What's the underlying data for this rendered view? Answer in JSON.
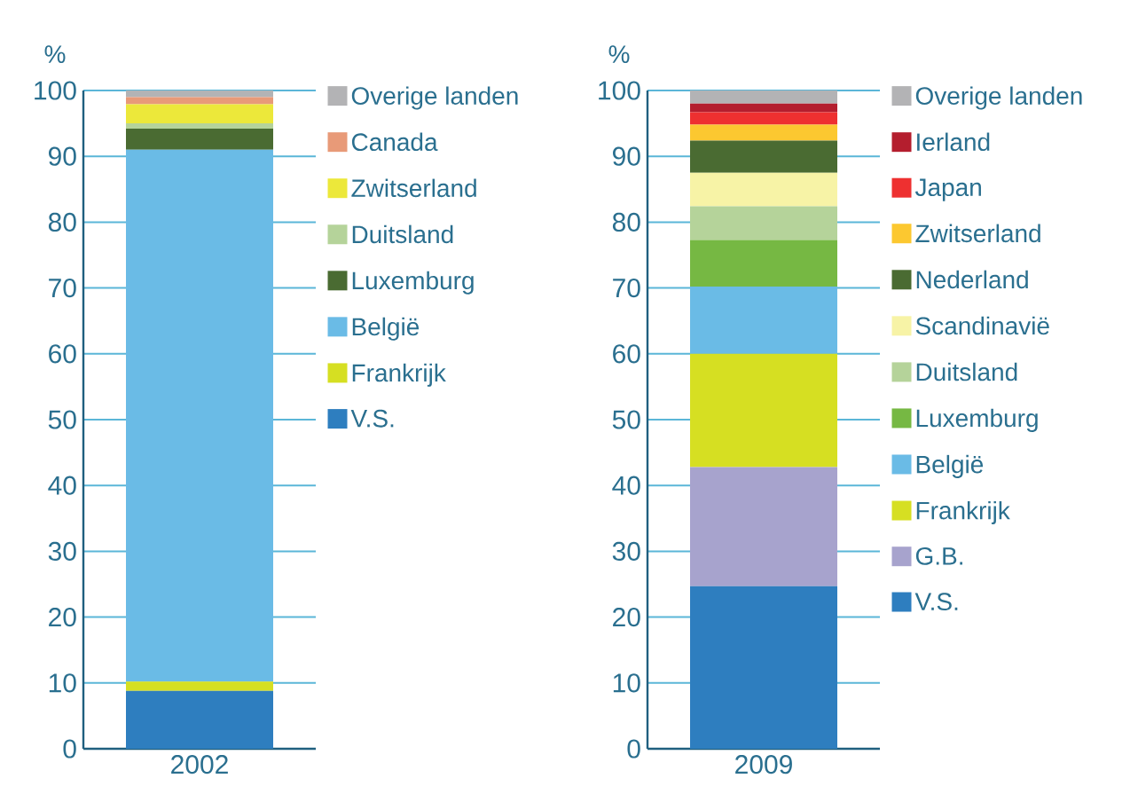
{
  "chart_data": [
    {
      "type": "bar",
      "stacked": true,
      "categories": [
        "2002"
      ],
      "ylabel": "%",
      "ylim": [
        0,
        100
      ],
      "yticks": [
        0,
        10,
        20,
        30,
        40,
        50,
        60,
        70,
        80,
        90,
        100
      ],
      "grid": "y",
      "legend": "right",
      "series": [
        {
          "name": "V.S.",
          "color": "#2e7ebf",
          "values": [
            8.8
          ]
        },
        {
          "name": "Frankrijk",
          "color": "#d6df22",
          "values": [
            1.4
          ]
        },
        {
          "name": "België",
          "color": "#6abbe6",
          "values": [
            80.8
          ]
        },
        {
          "name": "Luxemburg",
          "color": "#4a6b32",
          "values": [
            3.2
          ]
        },
        {
          "name": "Duitsland",
          "color": "#b5d39a",
          "values": [
            0.8
          ]
        },
        {
          "name": "Zwitserland",
          "color": "#ece83a",
          "values": [
            2.9
          ]
        },
        {
          "name": "Canada",
          "color": "#e89a78",
          "values": [
            1.1
          ]
        },
        {
          "name": "Overige landen",
          "color": "#b3b3b5",
          "values": [
            1.0
          ]
        }
      ]
    },
    {
      "type": "bar",
      "stacked": true,
      "categories": [
        "2009"
      ],
      "ylabel": "%",
      "ylim": [
        0,
        100
      ],
      "yticks": [
        0,
        10,
        20,
        30,
        40,
        50,
        60,
        70,
        80,
        90,
        100
      ],
      "grid": "y",
      "legend": "right",
      "series": [
        {
          "name": "V.S.",
          "color": "#2e7ebf",
          "values": [
            24.7
          ]
        },
        {
          "name": "G.B.",
          "color": "#a7a3cd",
          "values": [
            18.1
          ]
        },
        {
          "name": "Frankrijk",
          "color": "#d6df22",
          "values": [
            17.2
          ]
        },
        {
          "name": "België",
          "color": "#6abbe6",
          "values": [
            10.2
          ]
        },
        {
          "name": "Luxemburg",
          "color": "#76b843",
          "values": [
            7.1
          ]
        },
        {
          "name": "Duitsland",
          "color": "#b5d39a",
          "values": [
            5.1
          ]
        },
        {
          "name": "Scandinavië",
          "color": "#f7f3a6",
          "values": [
            5.1
          ]
        },
        {
          "name": "Nederland",
          "color": "#4a6b32",
          "values": [
            4.9
          ]
        },
        {
          "name": "Zwitserland",
          "color": "#fcc830",
          "values": [
            2.4
          ]
        },
        {
          "name": "Japan",
          "color": "#ee3030",
          "values": [
            1.9
          ]
        },
        {
          "name": "Ierland",
          "color": "#b41e2e",
          "values": [
            1.3
          ]
        },
        {
          "name": "Overige landen",
          "color": "#b3b3b5",
          "values": [
            2.0
          ]
        }
      ]
    }
  ]
}
